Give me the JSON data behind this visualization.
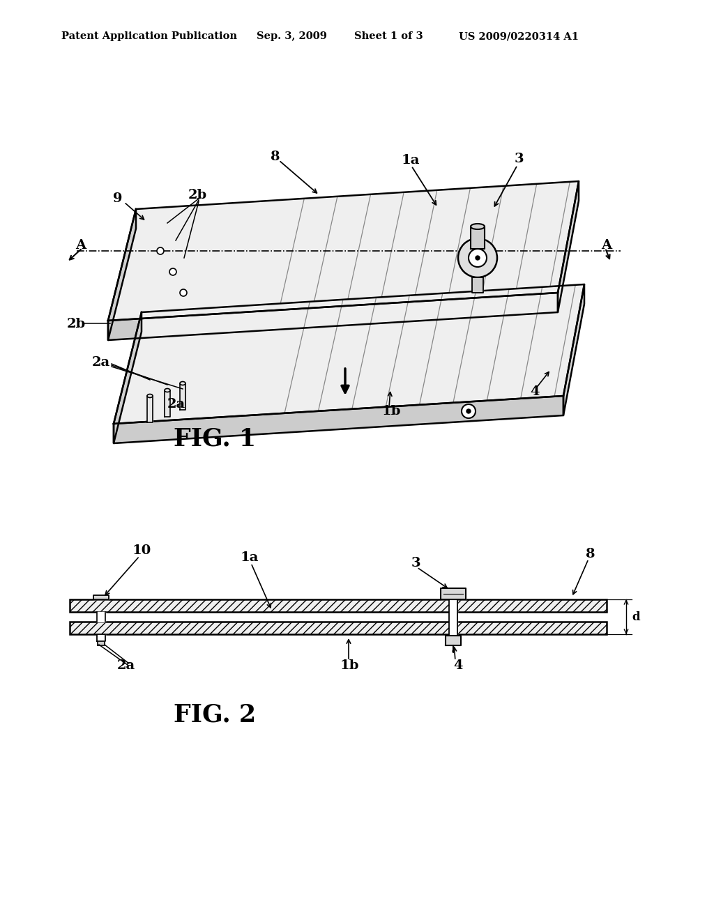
{
  "bg_color": "#ffffff",
  "line_color": "#000000",
  "header_text": "Patent Application Publication",
  "header_date": "Sep. 3, 2009",
  "header_sheet": "Sheet 1 of 3",
  "header_patent": "US 2009/0220314 A1",
  "fig1_label": "FIG. 1",
  "fig2_label": "FIG. 2"
}
